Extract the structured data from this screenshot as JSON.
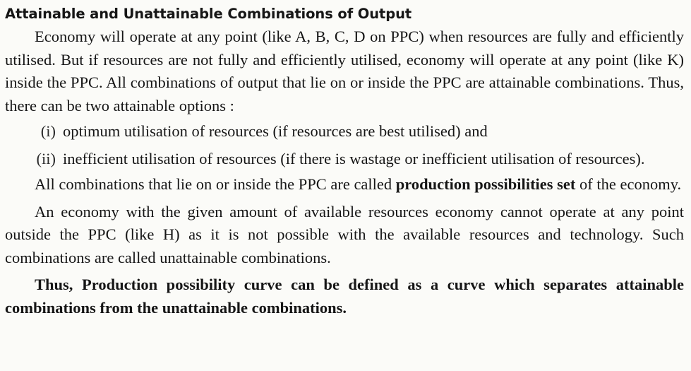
{
  "heading": "Attainable and Unattainable Combinations of Output",
  "para1": "Economy will operate at any point (like A, B, C, D on PPC) when resources are fully and efficiently utilised. But if resources are not fully and efficiently utilised, economy will operate at any point (like K) inside the PPC. All combinations of output that lie on or inside the PPC are attainable combinations. Thus, there can be two attainable options :",
  "options": [
    {
      "num": "(i)",
      "text": "optimum utilisation of resources (if resources are best utilised) and"
    },
    {
      "num": "(ii)",
      "text": "inefficient utilisation of resources (if there is wastage or inefficient utilisation of resources)."
    }
  ],
  "para2": {
    "before": "All combinations that lie on or inside the PPC are called",
    "bold": "production possibilities set",
    "after": "of the economy."
  },
  "para3": "An economy with the given amount of available resources economy cannot operate at any point outside the PPC (like H) as it is not possible with the available resources and technology. Such combinations are called unattainable combinations.",
  "para4": "Thus, Production possibility curve can be defined as a curve which separates attainable combinations from the unattainable combinations."
}
